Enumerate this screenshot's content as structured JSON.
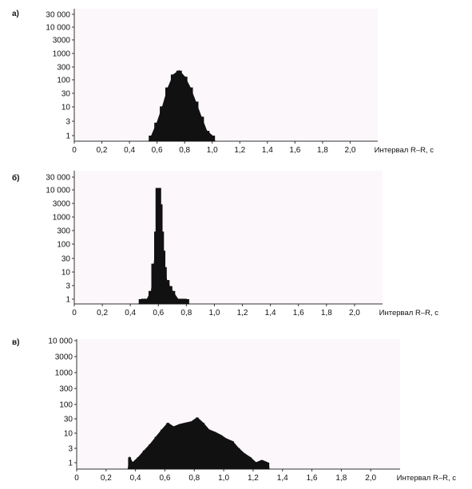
{
  "chart_data": [
    {
      "panel": "а)",
      "type": "histogram",
      "xlabel": "Интервал R–R, с",
      "xlim": [
        0,
        2.2
      ],
      "x_ticks": [
        "0",
        "0,2",
        "0,4",
        "0,6",
        "0,8",
        "1,0",
        "1,2",
        "1,4",
        "1,6",
        "1,8",
        "2,0"
      ],
      "y_scale": "log",
      "ylim": [
        0.6,
        60000
      ],
      "y_ticks": [
        "30 000",
        "10 000",
        "3000",
        "1000",
        "300",
        "100",
        "30",
        "10",
        "3",
        "1"
      ],
      "x": [
        0.56,
        0.6,
        0.64,
        0.68,
        0.72,
        0.76,
        0.8,
        0.84,
        0.88,
        0.92,
        0.96,
        1.0
      ],
      "counts": [
        1,
        3,
        12,
        60,
        180,
        250,
        150,
        60,
        18,
        5,
        1.5,
        1
      ]
    },
    {
      "panel": "б)",
      "type": "histogram",
      "xlabel": "Интервал R–R, с",
      "xlim": [
        0,
        2.2
      ],
      "x_ticks": [
        "0",
        "0,2",
        "0,4",
        "0,6",
        "0,8",
        "1,0",
        "1,2",
        "1,4",
        "1,6",
        "1,8",
        "2,0"
      ],
      "y_scale": "log",
      "ylim": [
        0.6,
        60000
      ],
      "y_ticks": [
        "30 000",
        "10 000",
        "3000",
        "1000",
        "300",
        "100",
        "30",
        "10",
        "3",
        "1"
      ],
      "x": [
        0.48,
        0.52,
        0.55,
        0.57,
        0.59,
        0.6,
        0.61,
        0.62,
        0.63,
        0.64,
        0.66,
        0.68,
        0.7,
        0.74,
        0.8
      ],
      "counts": [
        1,
        1,
        2,
        20,
        300,
        12000,
        3000,
        300,
        60,
        15,
        5,
        3,
        2,
        1,
        1
      ]
    },
    {
      "panel": "в)",
      "type": "histogram",
      "xlabel": "Интервал R–R, с",
      "xlim": [
        0,
        2.2
      ],
      "x_ticks": [
        "0",
        "0,2",
        "0,4",
        "0,6",
        "0,8",
        "1,0",
        "1,2",
        "1,4",
        "1,6",
        "1,8",
        "2,0"
      ],
      "y_scale": "log",
      "ylim": [
        0.6,
        30000
      ],
      "y_ticks": [
        "10 000",
        "3000",
        "1000",
        "300",
        "100",
        "30",
        "10",
        "3",
        "1"
      ],
      "x": [
        0.36,
        0.38,
        0.42,
        0.46,
        0.5,
        0.54,
        0.58,
        0.62,
        0.66,
        0.7,
        0.74,
        0.78,
        0.82,
        0.86,
        0.9,
        0.94,
        0.98,
        1.02,
        1.06,
        1.1,
        1.14,
        1.18,
        1.22,
        1.26,
        1.3
      ],
      "counts": [
        1.5,
        1,
        1.5,
        2.5,
        4,
        7,
        12,
        20,
        15,
        18,
        20,
        22,
        30,
        20,
        12,
        10,
        8,
        6,
        5,
        3,
        2,
        1.5,
        1,
        1.2,
        1
      ]
    }
  ],
  "colors": {
    "plot_background": "#fbf7fb",
    "bars": "#111111",
    "axis": "#333333"
  }
}
